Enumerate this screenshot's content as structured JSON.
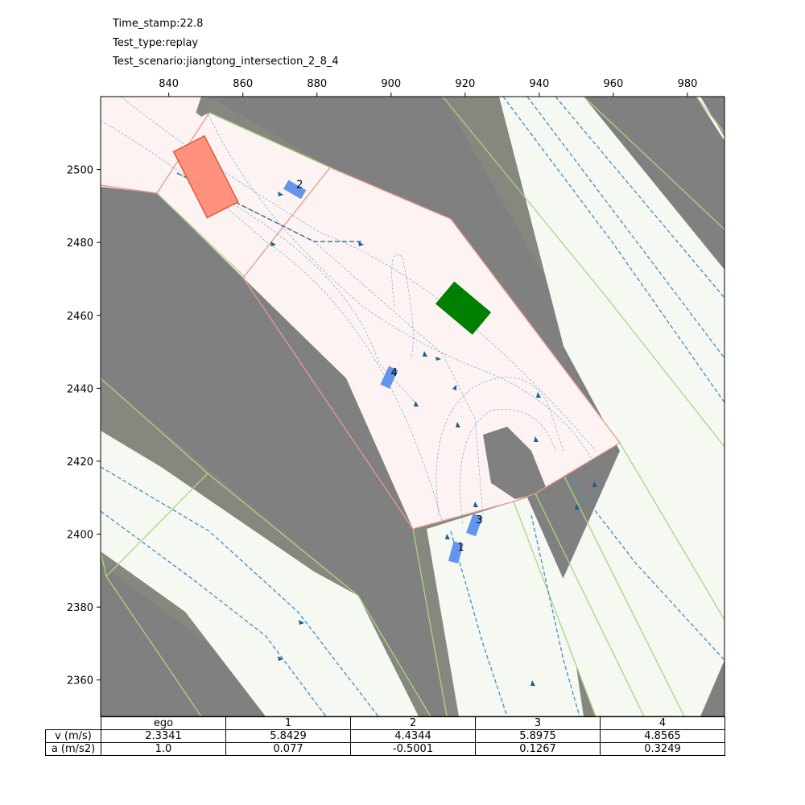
{
  "header": {
    "timestamp": "Time_stamp:22.8",
    "test_type": "Test_type:replay",
    "scenario": "Test_scenario:jiangtong_intersection_2_8_4"
  },
  "colors": {
    "background_area": "#808080",
    "drivable_area": "#fdf3f3",
    "lane_area": "#f6f9f2",
    "sidewalk_strip": "#868880",
    "lane_border": "#a9d67f",
    "junction_border": "#e8998d",
    "centerline": "#3b8fc7",
    "ego_fill": "#ff8c78",
    "ego_edge": "#e05a3a",
    "agent_fill": "#6495ed",
    "obstacle_fill": "#008000"
  },
  "chart_data": {
    "type": "scatter",
    "title": "",
    "xlabel": "",
    "ylabel": "",
    "xlim": [
      821.6,
      990
    ],
    "ylim": [
      2350,
      2520
    ],
    "xticks": [
      840,
      860,
      880,
      900,
      920,
      940,
      960,
      980
    ],
    "yticks": [
      2360,
      2380,
      2400,
      2420,
      2440,
      2460,
      2480,
      2500
    ],
    "x_axis_position": "top",
    "grid": false,
    "ego": {
      "name": "ego",
      "x": 850,
      "y": 2498,
      "heading_deg": -63,
      "length": 20,
      "width": 9.5
    },
    "agents": [
      {
        "id": "1",
        "x": 917.5,
        "y": 2395,
        "heading_deg": 75,
        "length": 5.5,
        "width": 2.8
      },
      {
        "id": "2",
        "x": 874,
        "y": 2494.5,
        "heading_deg": -30,
        "length": 5.5,
        "width": 2.8
      },
      {
        "id": "3",
        "x": 922.5,
        "y": 2402.5,
        "heading_deg": 70,
        "length": 5.5,
        "width": 2.8
      },
      {
        "id": "4",
        "x": 899.5,
        "y": 2443,
        "heading_deg": 65,
        "length": 5.5,
        "width": 2.8
      }
    ],
    "obstacle": {
      "x": 919.5,
      "y": 2462,
      "heading_deg": -40,
      "length": 13,
      "width": 8
    },
    "table": {
      "columns": [
        "ego",
        "1",
        "2",
        "3",
        "4"
      ],
      "rows": [
        {
          "label": "v (m/s)",
          "values": [
            "2.3341",
            "5.8429",
            "4.4344",
            "5.8975",
            "4.8565"
          ]
        },
        {
          "label": "a (m/s2)",
          "values": [
            "1.0",
            "0.077",
            "-0.5001",
            "0.1267",
            "0.3249"
          ]
        }
      ]
    }
  }
}
